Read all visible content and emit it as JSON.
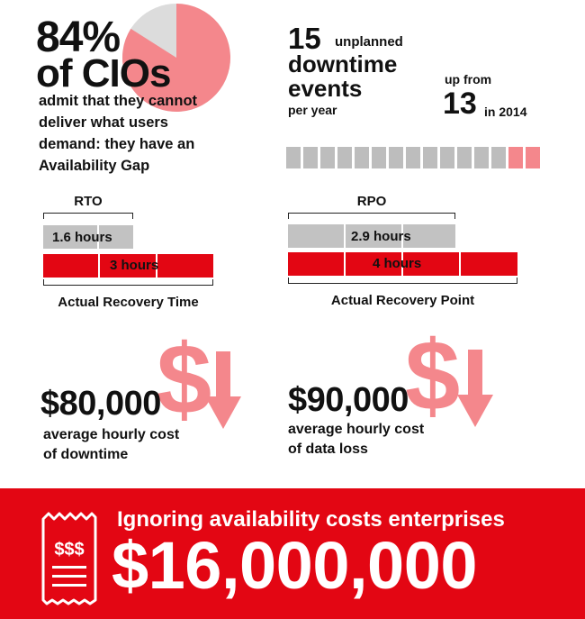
{
  "cio": {
    "percent": "84%",
    "who": "of CIOs",
    "description": "admit that they cannot deliver what users demand: they have an Availability Gap",
    "pie_fraction": 0.84
  },
  "downtime": {
    "number": "15",
    "unplanned": "unplanned",
    "title": "downtime events",
    "per": "per year",
    "up_from": "up from",
    "previous": "13",
    "year": "in 2014",
    "segments_total": 15,
    "segments_new": 2
  },
  "rto": {
    "label": "RTO",
    "target": "1.6 hours",
    "actual": "3 hours",
    "caption": "Actual Recovery Time"
  },
  "rpo": {
    "label": "RPO",
    "target": "2.9 hours",
    "actual": "4 hours",
    "caption": "Actual Recovery Point"
  },
  "cost_downtime": {
    "symbol": "$",
    "amount": "$80,000",
    "caption_line1": "average hourly cost",
    "caption_line2": "of downtime"
  },
  "cost_dataloss": {
    "symbol": "$",
    "amount": "$90,000",
    "caption_line1": "average hourly cost",
    "caption_line2": "of data loss"
  },
  "banner": {
    "text": "Ignoring availability costs enterprises",
    "amount": "$16,000,000",
    "receipt_text": "$$$"
  },
  "colors": {
    "red": "#e30613",
    "pink": "#f4878c",
    "gray": "#c2c2c2",
    "pie_gray": "#dcdcdc"
  }
}
